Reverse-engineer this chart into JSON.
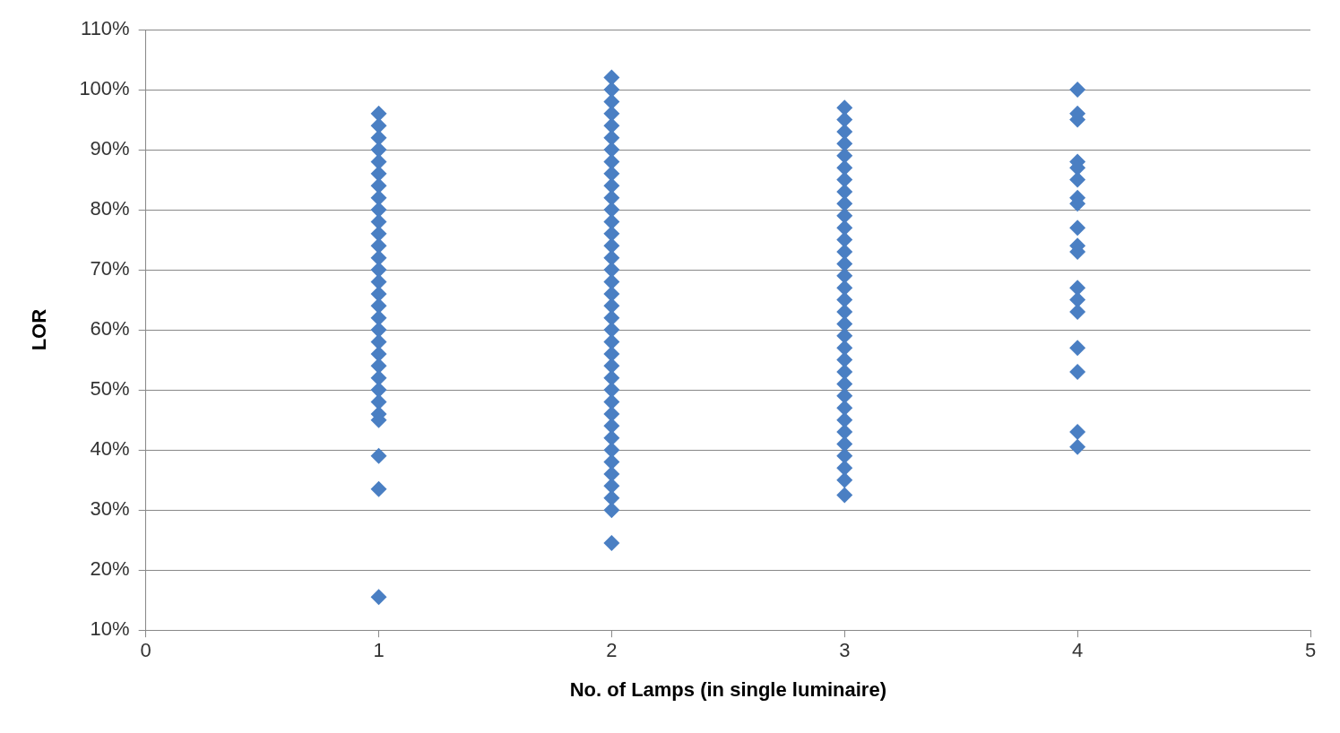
{
  "chart_data": {
    "type": "scatter",
    "xlabel": "No. of Lamps (in single luminaire)",
    "ylabel": "LOR",
    "marker": "diamond",
    "grid": "y",
    "legend": false,
    "xlim": [
      0,
      5
    ],
    "xticks": [
      0,
      1,
      2,
      3,
      4,
      5
    ],
    "ylim": [
      10,
      110
    ],
    "yticks": [
      {
        "value": 10,
        "label": "10%"
      },
      {
        "value": 20,
        "label": "20%"
      },
      {
        "value": 30,
        "label": "30%"
      },
      {
        "value": 40,
        "label": "40%"
      },
      {
        "value": 50,
        "label": "50%"
      },
      {
        "value": 60,
        "label": "60%"
      },
      {
        "value": 70,
        "label": "70%"
      },
      {
        "value": 80,
        "label": "80%"
      },
      {
        "value": 90,
        "label": "90%"
      },
      {
        "value": 100,
        "label": "100%"
      },
      {
        "value": 110,
        "label": "110%"
      }
    ],
    "series": [
      {
        "color": "#4a7fc3",
        "x": [
          1,
          1,
          1,
          1,
          1,
          1,
          1,
          1,
          1,
          1,
          1,
          1,
          1,
          1,
          1,
          1,
          1,
          1,
          1,
          1,
          1,
          1,
          1,
          1,
          1,
          1,
          1,
          1,
          1,
          1
        ],
        "values": [
          96,
          94,
          92,
          90,
          88,
          86,
          84,
          82,
          80,
          78,
          76,
          74,
          72,
          70,
          68,
          66,
          64,
          62,
          60,
          58,
          56,
          54,
          52,
          50,
          48,
          46,
          45,
          39,
          33.5,
          15.5
        ]
      },
      {
        "color": "#4a7fc3",
        "x": [
          2,
          2,
          2,
          2,
          2,
          2,
          2,
          2,
          2,
          2,
          2,
          2,
          2,
          2,
          2,
          2,
          2,
          2,
          2,
          2,
          2,
          2,
          2,
          2,
          2,
          2,
          2,
          2,
          2,
          2,
          2,
          2,
          2,
          2,
          2,
          2,
          2,
          2
        ],
        "values": [
          102,
          100,
          98,
          96,
          94,
          92,
          90,
          88,
          86,
          84,
          82,
          80,
          78,
          76,
          74,
          72,
          70,
          68,
          66,
          64,
          62,
          60,
          58,
          56,
          54,
          52,
          50,
          48,
          46,
          44,
          42,
          40,
          38,
          36,
          34,
          32,
          30,
          24.5
        ]
      },
      {
        "color": "#4a7fc3",
        "x": [
          3,
          3,
          3,
          3,
          3,
          3,
          3,
          3,
          3,
          3,
          3,
          3,
          3,
          3,
          3,
          3,
          3,
          3,
          3,
          3,
          3,
          3,
          3,
          3,
          3,
          3,
          3,
          3,
          3,
          3,
          3,
          3,
          3
        ],
        "values": [
          97,
          95,
          93,
          91,
          89,
          87,
          85,
          83,
          81,
          79,
          77,
          75,
          73,
          71,
          69,
          67,
          65,
          63,
          61,
          59,
          57,
          55,
          53,
          51,
          49,
          47,
          45,
          43,
          41,
          39,
          37,
          35,
          32.5
        ]
      },
      {
        "color": "#4a7fc3",
        "x": [
          4,
          4,
          4,
          4,
          4,
          4,
          4,
          4,
          4,
          4,
          4,
          4,
          4,
          4,
          4,
          4,
          4,
          4
        ],
        "values": [
          100,
          96,
          95,
          88,
          87,
          85,
          82,
          81,
          77,
          74,
          73,
          67,
          65,
          63,
          57,
          53,
          43,
          40.5
        ]
      }
    ]
  }
}
